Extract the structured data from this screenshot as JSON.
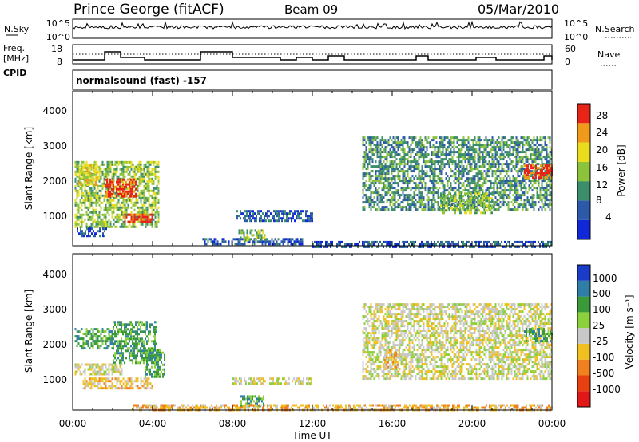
{
  "header": {
    "station": "Prince George (fitACF)",
    "beam": "Beam 09",
    "date": "05/Mar/2010"
  },
  "noise_panel": {
    "left_label": "N.Sky",
    "left_ticks": [
      "10^5",
      "10^0"
    ],
    "right_ticks": [
      "10^5",
      "10^0"
    ],
    "right_label": "N.Search"
  },
  "freq_panel": {
    "left_label_1": "Freq.",
    "left_label_2": "[MHz]",
    "left_ticks": [
      "18",
      "8"
    ],
    "right_ticks": [
      "60",
      "0"
    ],
    "right_label": "Nave",
    "cpid_label": "CPID",
    "cpid_text": "normalsound (fast) -157"
  },
  "x_axis": {
    "ticks": [
      "00:00",
      "04:00",
      "08:00",
      "12:00",
      "16:00",
      "20:00",
      "00:00"
    ],
    "label": "Time UT"
  },
  "power_panel": {
    "ylabel": "Slant Range [km]",
    "yticks": [
      "1000",
      "2000",
      "3000",
      "4000"
    ],
    "colorbar_label": "Power [dB]",
    "colorbar_ticks": [
      "4",
      "8",
      "12",
      "16",
      "20",
      "24",
      "28"
    ],
    "colors": [
      "#1028d8",
      "#2c5aa8",
      "#3c8e6a",
      "#8cc23c",
      "#e8dc1c",
      "#f09a1c",
      "#e82418"
    ]
  },
  "velocity_panel": {
    "ylabel": "Slant Range [km]",
    "yticks": [
      "1000",
      "2000",
      "3000",
      "4000"
    ],
    "colorbar_label": "Velocity [m s⁻¹]",
    "colorbar_ticks": [
      "1000",
      "500",
      "100",
      "25",
      "-25",
      "-100",
      "-500",
      "-1000"
    ],
    "colors": [
      "#1a3cc8",
      "#2e7ea8",
      "#3a9a3a",
      "#8cd03c",
      "#c8c8c8",
      "#f0c020",
      "#f08020",
      "#e84010",
      "#e01818"
    ]
  },
  "chart_data": [
    {
      "type": "heatmap",
      "title": "Power",
      "x_range_hours": [
        0,
        24
      ],
      "y_range_km": [
        180,
        4600
      ],
      "colorbar_range_db": [
        0,
        30
      ],
      "regions": [
        {
          "t0": 0.1,
          "t1": 4.3,
          "r0": 700,
          "r1": 2600,
          "level": 3
        },
        {
          "t0": 1.6,
          "t1": 3.2,
          "r0": 1600,
          "r1": 2100,
          "level": 6
        },
        {
          "t0": 2.5,
          "t1": 4.0,
          "r0": 850,
          "r1": 1100,
          "level": 6
        },
        {
          "t0": 0.3,
          "t1": 1.2,
          "r0": 1900,
          "r1": 2500,
          "level": 4
        },
        {
          "t0": 0.2,
          "t1": 1.7,
          "r0": 450,
          "r1": 700,
          "level": 1
        },
        {
          "t0": 6.5,
          "t1": 11.5,
          "r0": 200,
          "r1": 400,
          "level": 1
        },
        {
          "t0": 8.2,
          "t1": 12.0,
          "r0": 900,
          "r1": 1200,
          "level": 1
        },
        {
          "t0": 8.3,
          "t1": 9.6,
          "r0": 350,
          "r1": 650,
          "level": 3
        },
        {
          "t0": 14.5,
          "t1": 24.0,
          "r0": 1200,
          "r1": 3300,
          "level": 2
        },
        {
          "t0": 18.4,
          "t1": 21.0,
          "r0": 1100,
          "r1": 1700,
          "level": 3
        },
        {
          "t0": 22.6,
          "t1": 24.0,
          "r0": 2100,
          "r1": 2500,
          "level": 6
        },
        {
          "t0": 12.0,
          "t1": 24.0,
          "r0": 180,
          "r1": 320,
          "level": 1
        }
      ]
    },
    {
      "type": "heatmap",
      "title": "Velocity",
      "x_range_hours": [
        0,
        24
      ],
      "y_range_km": [
        180,
        4600
      ],
      "regions": [
        {
          "t0": 0.1,
          "t1": 2.0,
          "r0": 1900,
          "r1": 2500,
          "level": 6
        },
        {
          "t0": 2.0,
          "t1": 4.2,
          "r0": 1500,
          "r1": 2700,
          "level": 6
        },
        {
          "t0": 0.1,
          "t1": 2.5,
          "r0": 1200,
          "r1": 1500,
          "level": 4
        },
        {
          "t0": 0.5,
          "t1": 4.0,
          "r0": 800,
          "r1": 1100,
          "level": 3
        },
        {
          "t0": 3.6,
          "t1": 4.6,
          "r0": 1100,
          "r1": 1900,
          "level": 6
        },
        {
          "t0": 8.0,
          "t1": 12.0,
          "r0": 900,
          "r1": 1100,
          "level": 4
        },
        {
          "t0": 8.4,
          "t1": 9.6,
          "r0": 300,
          "r1": 600,
          "level": 6
        },
        {
          "t0": 14.5,
          "t1": 24.0,
          "r0": 1100,
          "r1": 3200,
          "level": 4
        },
        {
          "t0": 15.6,
          "t1": 16.4,
          "r0": 1400,
          "r1": 1900,
          "level": 3
        },
        {
          "t0": 22.6,
          "t1": 24.0,
          "r0": 2100,
          "r1": 2500,
          "level": 6
        },
        {
          "t0": 3.0,
          "t1": 24.0,
          "r0": 180,
          "r1": 350,
          "level": 3
        }
      ]
    }
  ]
}
